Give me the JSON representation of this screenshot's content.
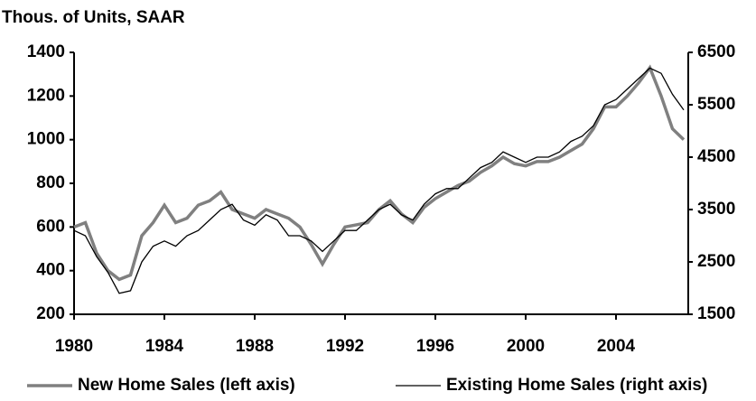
{
  "chart_data": {
    "type": "line",
    "title": "Thous. of Units, SAAR",
    "x": [
      1980,
      1980.5,
      1981,
      1981.5,
      1982,
      1982.5,
      1983,
      1983.5,
      1984,
      1984.5,
      1985,
      1985.5,
      1986,
      1986.5,
      1987,
      1987.5,
      1988,
      1988.5,
      1989,
      1989.5,
      1990,
      1990.5,
      1991,
      1991.5,
      1992,
      1992.5,
      1993,
      1993.5,
      1994,
      1994.5,
      1995,
      1995.5,
      1996,
      1996.5,
      1997,
      1997.5,
      1998,
      1998.5,
      1999,
      1999.5,
      2000,
      2000.5,
      2001,
      2001.5,
      2002,
      2002.5,
      2003,
      2003.5,
      2004,
      2004.5,
      2005,
      2005.5,
      2006,
      2006.5,
      2007
    ],
    "series": [
      {
        "name": "New Home Sales (left axis)",
        "color": "#808080",
        "axis": "y",
        "values": [
          600,
          620,
          480,
          400,
          360,
          380,
          560,
          620,
          700,
          620,
          640,
          700,
          720,
          760,
          680,
          660,
          640,
          680,
          660,
          640,
          600,
          520,
          430,
          520,
          600,
          610,
          620,
          680,
          720,
          660,
          620,
          690,
          730,
          760,
          790,
          810,
          850,
          880,
          920,
          890,
          880,
          900,
          900,
          920,
          950,
          980,
          1050,
          1150,
          1150,
          1200,
          1260,
          1330,
          1200,
          1050,
          1000
        ]
      },
      {
        "name": "Existing Home Sales (right axis)",
        "color": "#000000",
        "axis": "y2",
        "values": [
          3100,
          3000,
          2600,
          2300,
          1900,
          1950,
          2500,
          2800,
          2900,
          2800,
          3000,
          3100,
          3300,
          3500,
          3600,
          3300,
          3200,
          3400,
          3300,
          3000,
          3000,
          2900,
          2700,
          2900,
          3100,
          3100,
          3300,
          3500,
          3600,
          3400,
          3300,
          3600,
          3800,
          3900,
          3900,
          4100,
          4300,
          4400,
          4600,
          4500,
          4400,
          4500,
          4500,
          4600,
          4800,
          4900,
          5100,
          5500,
          5600,
          5800,
          6000,
          6200,
          6100,
          5700,
          5400
        ]
      }
    ],
    "xlim": [
      1980,
      2007.2
    ],
    "xticks": [
      1980,
      1984,
      1988,
      1992,
      1996,
      2000,
      2004
    ],
    "ylim": [
      200,
      1400
    ],
    "yticks": [
      200,
      400,
      600,
      800,
      1000,
      1200,
      1400
    ],
    "y2lim": [
      1500,
      6500
    ],
    "y2ticks": [
      1500,
      2500,
      3500,
      4500,
      5500,
      6500
    ],
    "legend": "bottom"
  }
}
